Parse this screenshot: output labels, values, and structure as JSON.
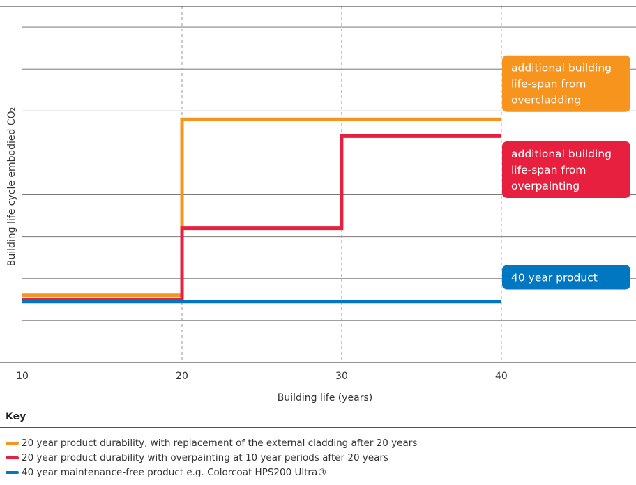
{
  "chart_data": {
    "type": "line",
    "ylabel": "Building life cycle embodied CO₂",
    "xlabel": "Building life (years)",
    "xticks": [
      10,
      20,
      30,
      40
    ],
    "xlim": [
      10,
      49
    ],
    "ylim": [
      0,
      8.5
    ],
    "grid": true,
    "series": [
      {
        "name": "20 year product durability, with replacement of the external cladding after 20 years",
        "color": "#f7941d",
        "step": true,
        "points": [
          [
            10,
            1.6
          ],
          [
            20,
            1.6
          ],
          [
            20,
            5.8
          ],
          [
            40,
            5.8
          ]
        ]
      },
      {
        "name": "20 year product durability with overpainting at 10 year periods after 20 years",
        "color": "#e8203f",
        "step": true,
        "points": [
          [
            10,
            1.5
          ],
          [
            20,
            1.5
          ],
          [
            20,
            3.2
          ],
          [
            30,
            3.2
          ],
          [
            30,
            5.4
          ],
          [
            40,
            5.4
          ]
        ]
      },
      {
        "name": "40 year maintenance-free product e.g. Colorcoat HPS200 Ultra®",
        "color": "#0077c0",
        "step": true,
        "points": [
          [
            10,
            1.45
          ],
          [
            40,
            1.45
          ]
        ]
      }
    ],
    "annotations": [
      {
        "lines": [
          "additional building",
          "life-span from",
          "overcladding"
        ],
        "color": "#f7941d",
        "y": 6.65
      },
      {
        "lines": [
          "additional building",
          "life-span from",
          "overpainting"
        ],
        "color": "#e8203f",
        "y": 4.6
      },
      {
        "lines": [
          "40 year product"
        ],
        "color": "#0077c0",
        "y": 2.03
      }
    ]
  },
  "key": {
    "title": "Key"
  }
}
